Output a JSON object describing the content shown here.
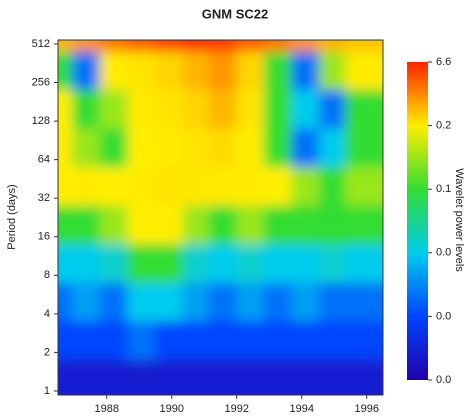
{
  "chart_data": {
    "type": "heatmap",
    "title": "GNM SC22",
    "y_label": "Period (days)",
    "colorbar_label": "Wavelet power levels",
    "y_scale": "log",
    "xlim": [
      1986.5,
      1996.5
    ],
    "xticks": [
      1988,
      1990,
      1992,
      1994,
      1996
    ],
    "ylim": [
      0.93,
      550
    ],
    "yticks": [
      1,
      2,
      4,
      8,
      16,
      32,
      64,
      128,
      256,
      512
    ],
    "x": [
      1986.9,
      1987.7,
      1988.6,
      1989.4,
      1990.3,
      1991.1,
      1991.9,
      1992.8,
      1993.6,
      1994.5,
      1995.3,
      1996.1
    ],
    "y": [
      512,
      256,
      128,
      64,
      32,
      16,
      8,
      4,
      2,
      1
    ],
    "z": [
      [
        2,
        3,
        4,
        5,
        6,
        6.5,
        6,
        5,
        4,
        3,
        2,
        1.5
      ],
      [
        0.1,
        0.02,
        0.3,
        0.5,
        1,
        2,
        3,
        1,
        0.1,
        0.02,
        0.15,
        0.3
      ],
      [
        0.2,
        0.1,
        0.15,
        0.3,
        0.5,
        1,
        2,
        0.5,
        0.1,
        0.04,
        0.02,
        0.1
      ],
      [
        0.3,
        0.15,
        0.1,
        0.2,
        0.3,
        0.5,
        0.8,
        0.2,
        0.1,
        0.02,
        0.04,
        0.1
      ],
      [
        0.2,
        0.3,
        0.2,
        0.3,
        0.5,
        0.4,
        0.3,
        0.3,
        0.2,
        0.15,
        0.1,
        0.15
      ],
      [
        0.1,
        0.1,
        0.15,
        0.2,
        0.2,
        0.15,
        0.1,
        0.15,
        0.1,
        0.1,
        0.1,
        0.1
      ],
      [
        0.04,
        0.04,
        0.05,
        0.1,
        0.1,
        0.05,
        0.04,
        0.05,
        0.04,
        0.04,
        0.05,
        0.04
      ],
      [
        0.02,
        0.03,
        0.02,
        0.04,
        0.04,
        0.03,
        0.02,
        0.03,
        0.02,
        0.03,
        0.02,
        0.02
      ],
      [
        0.01,
        0.01,
        0.01,
        0.02,
        0.01,
        0.01,
        0.01,
        0.01,
        0.01,
        0.01,
        0.01,
        0.01
      ],
      [
        0.005,
        0.005,
        0.005,
        0.005,
        0.005,
        0.005,
        0.005,
        0.005,
        0.005,
        0.005,
        0.005,
        0.005
      ]
    ],
    "colorbar_ticks": [
      {
        "value": 0.001,
        "label": "0.0"
      },
      {
        "value": 0.01,
        "label": "0.0"
      },
      {
        "value": 0.04,
        "label": "0.0"
      },
      0.1,
      0.2,
      6.6
    ],
    "colors": [
      "#2200aa",
      "#0044ff",
      "#00ccee",
      "#33dd33",
      "#ffee00",
      "#ff2200"
    ]
  }
}
